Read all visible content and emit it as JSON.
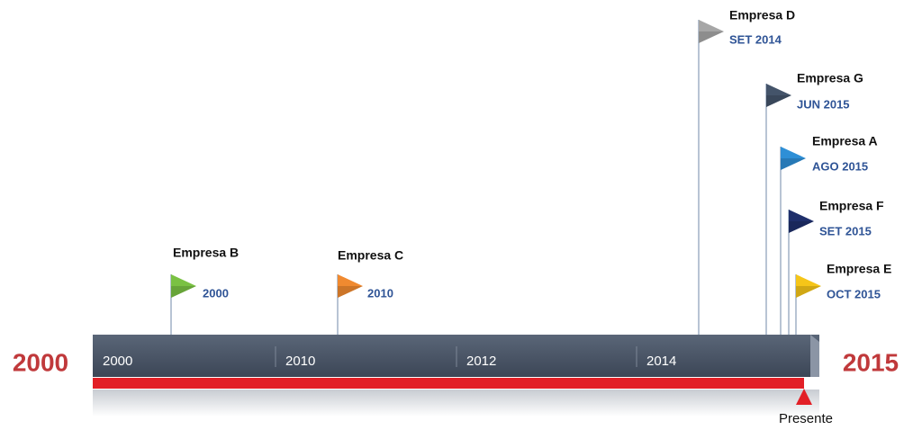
{
  "timeline": {
    "start_label": "2000",
    "end_label": "2015",
    "axis_labels": [
      "2000",
      "2010",
      "2012",
      "2014"
    ],
    "present_label": "Presente",
    "milestones": [
      {
        "name": "Empresa B",
        "date": "2000",
        "color": "#7ac143"
      },
      {
        "name": "Empresa C",
        "date": "2010",
        "color": "#f08a30"
      },
      {
        "name": "Empresa D",
        "date": "SET 2014",
        "color": "#a6a6a6"
      },
      {
        "name": "Empresa G",
        "date": "JUN 2015",
        "color": "#44546a"
      },
      {
        "name": "Empresa A",
        "date": "AGO 2015",
        "color": "#2e8fd6"
      },
      {
        "name": "Empresa F",
        "date": "SET 2015",
        "color": "#1f2f6b"
      },
      {
        "name": "Empresa E",
        "date": "OCT 2015",
        "color": "#f5c518"
      }
    ]
  }
}
